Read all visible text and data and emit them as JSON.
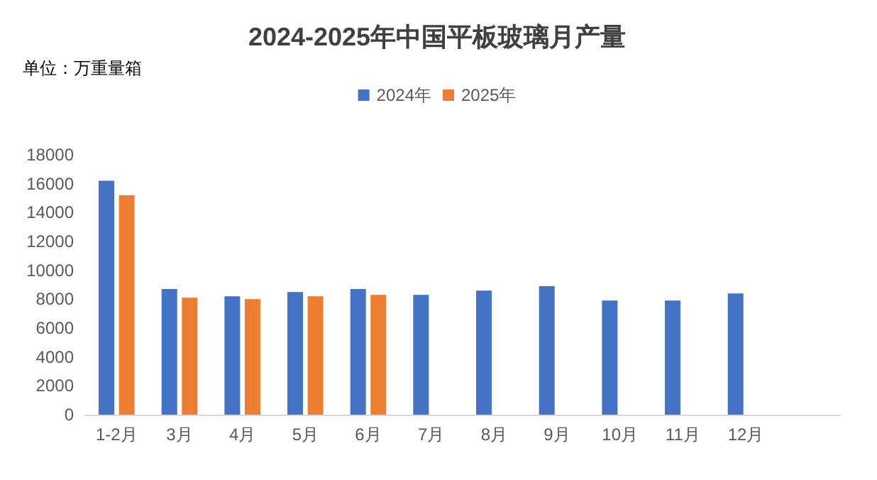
{
  "chart_data": {
    "type": "bar",
    "title": "2024-2025年中国平板玻璃月产量",
    "annotations": [
      "单位：万重量箱"
    ],
    "categories": [
      "1-2月",
      "3月",
      "4月",
      "5月",
      "6月",
      "7月",
      "8月",
      "9月",
      "10月",
      "11月",
      "12月",
      null
    ],
    "series": [
      {
        "name": "2024年",
        "color": "#4472c4",
        "values": [
          16200,
          8700,
          8200,
          8500,
          8700,
          8300,
          8600,
          8900,
          7900,
          7900,
          8400,
          null
        ]
      },
      {
        "name": "2025年",
        "color": "#ed7d31",
        "values": [
          15200,
          8100,
          8000,
          8200,
          8300,
          null,
          null,
          null,
          null,
          null,
          null,
          null
        ]
      }
    ],
    "ylim": [
      0,
      18000
    ],
    "yticks": [
      0,
      2000,
      4000,
      6000,
      8000,
      10000,
      12000,
      14000,
      16000,
      18000
    ],
    "grid": false,
    "legend": "top"
  }
}
